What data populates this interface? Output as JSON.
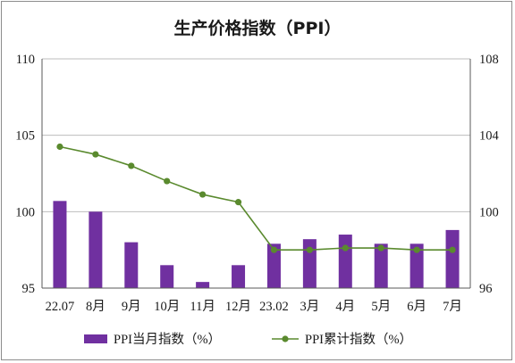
{
  "chart_data": {
    "type": "bar+line",
    "title": "生产价格指数（PPI）",
    "categories": [
      "22.07",
      "8月",
      "9月",
      "10月",
      "11月",
      "12月",
      "23.02",
      "3月",
      "4月",
      "5月",
      "6月",
      "7月"
    ],
    "series": [
      {
        "name": "PPI当月指数（%）",
        "type": "bar",
        "axis": "left",
        "color": "#7030a0",
        "values": [
          100.7,
          100.0,
          98.0,
          96.5,
          95.4,
          96.5,
          97.9,
          98.2,
          98.5,
          97.9,
          97.9,
          98.8
        ]
      },
      {
        "name": "PPI累计指数（%）",
        "type": "line",
        "axis": "right",
        "color": "#5a8a2e",
        "values": [
          103.4,
          103.0,
          102.4,
          101.6,
          100.9,
          100.5,
          98.0,
          98.0,
          98.1,
          98.1,
          98.0,
          98.0
        ]
      }
    ],
    "yleft": {
      "ylim": [
        95,
        110
      ],
      "ticks": [
        95,
        100,
        105,
        110
      ]
    },
    "yright": {
      "ylim": [
        96,
        108
      ],
      "ticks": [
        96,
        100,
        104,
        108
      ]
    },
    "grid": "horizontal",
    "legend_position": "bottom"
  }
}
